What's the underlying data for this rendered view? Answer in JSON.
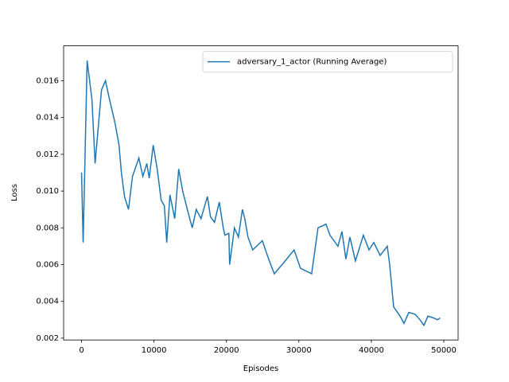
{
  "chart_data": {
    "type": "line",
    "xlabel": "Episodes",
    "ylabel": "Loss",
    "x": [
      0,
      220,
      770,
      1430,
      1870,
      2750,
      3300,
      3850,
      4620,
      5170,
      5500,
      5930,
      6480,
      7030,
      7910,
      8460,
      9010,
      9340,
      9890,
      10440,
      10990,
      11430,
      11760,
      12200,
      12860,
      13410,
      13960,
      14730,
      15280,
      15830,
      16490,
      17370,
      17800,
      18350,
      19010,
      19560,
      19780,
      20330,
      20440,
      21100,
      21650,
      22200,
      22530,
      22970,
      23630,
      24950,
      25830,
      26600,
      27690,
      29340,
      30220,
      31760,
      32640,
      33740,
      34290,
      35390,
      35940,
      36490,
      37040,
      37800,
      38900,
      39680,
      40340,
      41220,
      42200,
      42530,
      43080,
      43960,
      44510,
      45170,
      46050,
      46710,
      47260,
      47810,
      48580,
      49130,
      49500
    ],
    "series": [
      {
        "name": "adversary_1_actor (Running Average)",
        "color": "#1f77b4",
        "values": [
          0.011,
          0.0072,
          0.0171,
          0.015,
          0.0115,
          0.0155,
          0.016,
          0.015,
          0.0137,
          0.0125,
          0.011,
          0.0097,
          0.009,
          0.0108,
          0.0118,
          0.0108,
          0.0115,
          0.0107,
          0.0125,
          0.0112,
          0.0095,
          0.0092,
          0.0072,
          0.0098,
          0.0085,
          0.0112,
          0.01,
          0.0088,
          0.008,
          0.009,
          0.0085,
          0.0097,
          0.0086,
          0.0083,
          0.0094,
          0.008,
          0.0076,
          0.0077,
          0.006,
          0.008,
          0.0075,
          0.009,
          0.0085,
          0.0075,
          0.0068,
          0.0073,
          0.0063,
          0.0055,
          0.006,
          0.0068,
          0.0058,
          0.0055,
          0.008,
          0.0082,
          0.0076,
          0.007,
          0.0078,
          0.0063,
          0.0075,
          0.0062,
          0.0076,
          0.0068,
          0.0072,
          0.0065,
          0.007,
          0.006,
          0.0037,
          0.0032,
          0.0028,
          0.0034,
          0.0033,
          0.003,
          0.0027,
          0.0032,
          0.0031,
          0.003,
          0.0031
        ]
      }
    ],
    "xlim": [
      -2475,
      51975
    ],
    "ylim": [
      0.0019,
      0.0179
    ],
    "xticks": [
      0,
      10000,
      20000,
      30000,
      40000,
      50000
    ],
    "yticks": [
      0.002,
      0.004,
      0.006,
      0.008,
      {
        "value": 0.01,
        "label": "0.010"
      },
      0.012,
      0.014,
      0.016
    ],
    "legend": "upper right"
  }
}
